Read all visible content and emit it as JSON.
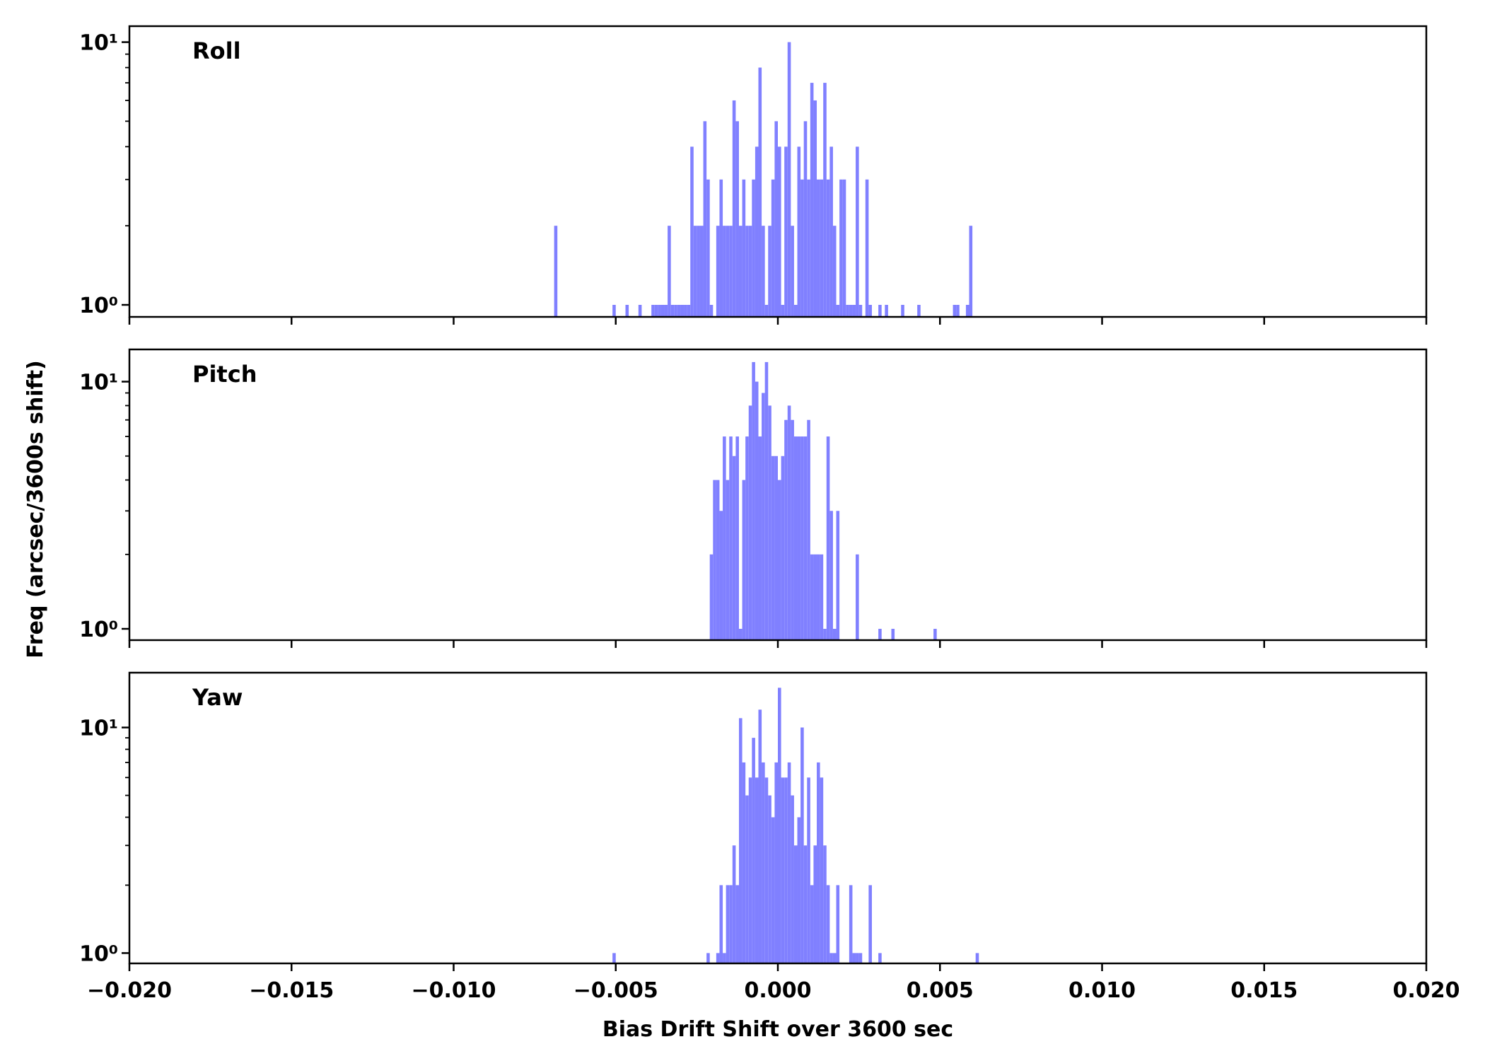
{
  "chart_data": {
    "type": "bar",
    "shared_x": true,
    "xlabel": "Bias Drift Shift over 3600 sec",
    "ylabel": "Freq (arcsec/3600s shift)",
    "xlim": [
      -0.02,
      0.02
    ],
    "x_ticks": [
      -0.02,
      -0.015,
      -0.01,
      -0.005,
      0.0,
      0.005,
      0.01,
      0.015,
      0.02
    ],
    "x_tick_labels": [
      "−0.020",
      "−0.015",
      "−0.010",
      "−0.005",
      "0.000",
      "0.005",
      "0.010",
      "0.015",
      "0.020"
    ],
    "yscale": "log",
    "y_tick_labels": [
      "10⁰",
      "10¹"
    ],
    "bar_color": "#8080ff",
    "grid": false,
    "panels": [
      {
        "label": "Roll",
        "ylim": [
          0.9,
          11.5
        ],
        "bins": [
          [
            -0.0069,
            2
          ],
          [
            -0.0051,
            1
          ],
          [
            -0.0047,
            1
          ],
          [
            -0.0043,
            1
          ],
          [
            -0.0039,
            1
          ],
          [
            -0.0038,
            1
          ],
          [
            -0.0037,
            1
          ],
          [
            -0.0036,
            1
          ],
          [
            -0.0035,
            1
          ],
          [
            -0.0034,
            2
          ],
          [
            -0.0033,
            1
          ],
          [
            -0.0032,
            1
          ],
          [
            -0.0031,
            1
          ],
          [
            -0.003,
            1
          ],
          [
            -0.0029,
            1
          ],
          [
            -0.0028,
            1
          ],
          [
            -0.0027,
            4
          ],
          [
            -0.0026,
            2
          ],
          [
            -0.0025,
            2
          ],
          [
            -0.0024,
            2
          ],
          [
            -0.0023,
            5
          ],
          [
            -0.0022,
            3
          ],
          [
            -0.0021,
            1
          ],
          [
            -0.0019,
            2
          ],
          [
            -0.0018,
            3
          ],
          [
            -0.0017,
            2
          ],
          [
            -0.0016,
            2
          ],
          [
            -0.0015,
            2
          ],
          [
            -0.0014,
            6
          ],
          [
            -0.0013,
            5
          ],
          [
            -0.0012,
            2
          ],
          [
            -0.0011,
            3
          ],
          [
            -0.001,
            2
          ],
          [
            -0.0009,
            2
          ],
          [
            -0.0008,
            3
          ],
          [
            -0.0007,
            4
          ],
          [
            -0.0006,
            8
          ],
          [
            -0.0005,
            2
          ],
          [
            -0.0004,
            1
          ],
          [
            -0.0003,
            2
          ],
          [
            -0.0002,
            3
          ],
          [
            -0.0001,
            5
          ],
          [
            0.0,
            4
          ],
          [
            0.0001,
            1
          ],
          [
            0.0002,
            4
          ],
          [
            0.0003,
            10
          ],
          [
            0.0004,
            2
          ],
          [
            0.0005,
            1
          ],
          [
            0.0006,
            4
          ],
          [
            0.0007,
            3
          ],
          [
            0.0008,
            5
          ],
          [
            0.0009,
            3
          ],
          [
            0.001,
            7
          ],
          [
            0.0011,
            6
          ],
          [
            0.0012,
            3
          ],
          [
            0.0013,
            3
          ],
          [
            0.0014,
            7
          ],
          [
            0.0015,
            3
          ],
          [
            0.0016,
            4
          ],
          [
            0.0017,
            2
          ],
          [
            0.0018,
            1
          ],
          [
            0.0019,
            3
          ],
          [
            0.002,
            3
          ],
          [
            0.0021,
            1
          ],
          [
            0.0022,
            1
          ],
          [
            0.0023,
            1
          ],
          [
            0.0024,
            4
          ],
          [
            0.0025,
            1
          ],
          [
            0.0027,
            3
          ],
          [
            0.0028,
            1
          ],
          [
            0.0031,
            1
          ],
          [
            0.0033,
            1
          ],
          [
            0.0038,
            1
          ],
          [
            0.0043,
            1
          ],
          [
            0.0054,
            1
          ],
          [
            0.0055,
            1
          ],
          [
            0.0058,
            1
          ],
          [
            0.0059,
            2
          ]
        ]
      },
      {
        "label": "Pitch",
        "ylim": [
          0.9,
          13.5
        ],
        "bins": [
          [
            -0.0021,
            2
          ],
          [
            -0.002,
            4
          ],
          [
            -0.0019,
            4
          ],
          [
            -0.0018,
            3
          ],
          [
            -0.0017,
            6
          ],
          [
            -0.0016,
            4
          ],
          [
            -0.0015,
            6
          ],
          [
            -0.0014,
            5
          ],
          [
            -0.0013,
            6
          ],
          [
            -0.0012,
            1
          ],
          [
            -0.0011,
            4
          ],
          [
            -0.001,
            6
          ],
          [
            -0.0009,
            8
          ],
          [
            -0.0008,
            12
          ],
          [
            -0.0007,
            10
          ],
          [
            -0.0006,
            6
          ],
          [
            -0.0005,
            9
          ],
          [
            -0.0004,
            12
          ],
          [
            -0.0003,
            8
          ],
          [
            -0.0002,
            5
          ],
          [
            -0.0001,
            5
          ],
          [
            0.0,
            4
          ],
          [
            0.0001,
            5
          ],
          [
            0.0002,
            7
          ],
          [
            0.0003,
            8
          ],
          [
            0.0004,
            7
          ],
          [
            0.0005,
            6
          ],
          [
            0.0006,
            6
          ],
          [
            0.0007,
            6
          ],
          [
            0.0008,
            6
          ],
          [
            0.0009,
            7
          ],
          [
            0.001,
            2
          ],
          [
            0.0011,
            2
          ],
          [
            0.0012,
            2
          ],
          [
            0.0013,
            2
          ],
          [
            0.0014,
            1
          ],
          [
            0.0015,
            6
          ],
          [
            0.0016,
            3
          ],
          [
            0.0017,
            1
          ],
          [
            0.0018,
            3
          ],
          [
            0.0024,
            2
          ],
          [
            0.0031,
            1
          ],
          [
            0.0035,
            1
          ],
          [
            0.0048,
            1
          ]
        ]
      },
      {
        "label": "Yaw",
        "ylim": [
          0.9,
          17.5
        ],
        "bins": [
          [
            -0.0051,
            1
          ],
          [
            -0.0022,
            1
          ],
          [
            -0.0019,
            1
          ],
          [
            -0.0018,
            2
          ],
          [
            -0.0017,
            1
          ],
          [
            -0.0016,
            2
          ],
          [
            -0.0015,
            2
          ],
          [
            -0.0014,
            3
          ],
          [
            -0.0013,
            2
          ],
          [
            -0.0012,
            11
          ],
          [
            -0.0011,
            7
          ],
          [
            -0.001,
            5
          ],
          [
            -0.0009,
            6
          ],
          [
            -0.0008,
            9
          ],
          [
            -0.0007,
            6
          ],
          [
            -0.0006,
            12
          ],
          [
            -0.0005,
            7
          ],
          [
            -0.0004,
            6
          ],
          [
            -0.0003,
            5
          ],
          [
            -0.0002,
            4
          ],
          [
            -0.0001,
            7
          ],
          [
            0.0,
            15
          ],
          [
            0.0001,
            6
          ],
          [
            0.0002,
            6
          ],
          [
            0.0003,
            7
          ],
          [
            0.0004,
            5
          ],
          [
            0.0005,
            3
          ],
          [
            0.0006,
            4
          ],
          [
            0.0007,
            10
          ],
          [
            0.0008,
            3
          ],
          [
            0.0009,
            6
          ],
          [
            0.001,
            2
          ],
          [
            0.0011,
            3
          ],
          [
            0.0012,
            7
          ],
          [
            0.0013,
            6
          ],
          [
            0.0014,
            3
          ],
          [
            0.0015,
            2
          ],
          [
            0.0016,
            1
          ],
          [
            0.0017,
            1
          ],
          [
            0.0018,
            2
          ],
          [
            0.0022,
            2
          ],
          [
            0.0023,
            1
          ],
          [
            0.0024,
            1
          ],
          [
            0.0025,
            1
          ],
          [
            0.0028,
            2
          ],
          [
            0.0031,
            1
          ],
          [
            0.0061,
            1
          ]
        ]
      }
    ]
  }
}
